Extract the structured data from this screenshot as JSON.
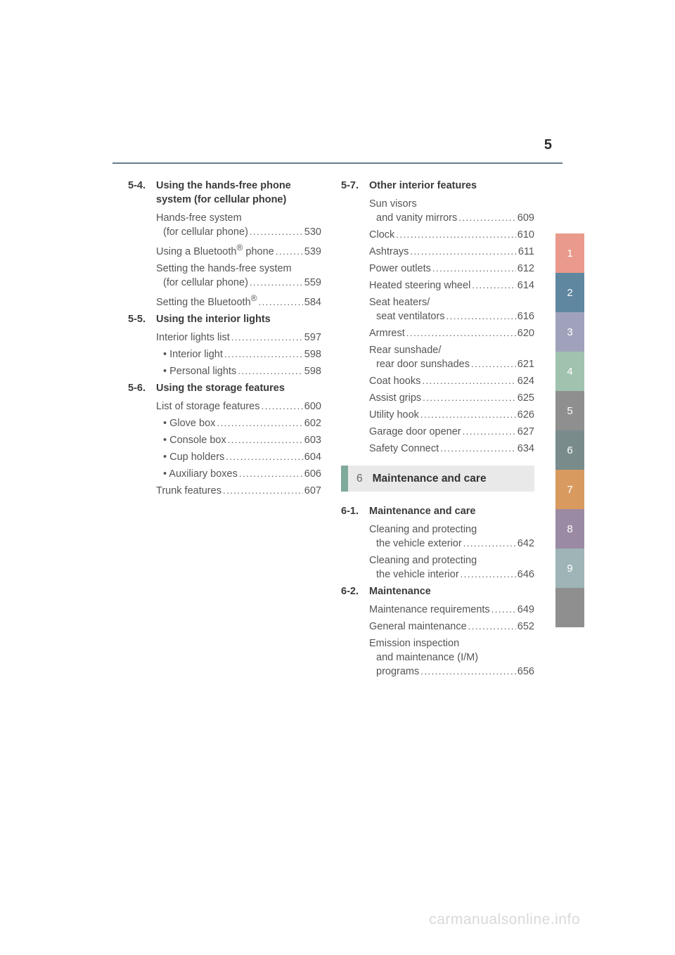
{
  "page_number": "5",
  "colors": {
    "rule": "#6a7a8a",
    "text": "#555555",
    "heading": "#3b3b3b",
    "chapter_accent": "#7fa99a",
    "chapter_bg": "#e9e9e9",
    "watermark": "#d9d9d9"
  },
  "left_col": [
    {
      "num": "5-4.",
      "title": "Using the hands-free phone system (for cellular phone)",
      "items": [
        {
          "lines": [
            "Hands-free system",
            "(for cellular phone)"
          ],
          "page": "530"
        },
        {
          "lines": [
            "Using a Bluetooth<sup>®</sup> phone"
          ],
          "page": "539"
        },
        {
          "lines": [
            "Setting the hands-free system",
            "(for cellular phone)"
          ],
          "page": "559"
        },
        {
          "lines": [
            "Setting the Bluetooth<sup>®</sup>"
          ],
          "page": "584"
        }
      ]
    },
    {
      "num": "5-5.",
      "title": "Using the interior lights",
      "items": [
        {
          "lines": [
            "Interior lights list"
          ],
          "page": "597"
        },
        {
          "lines": [
            "• Interior light"
          ],
          "page": "598",
          "sub": true
        },
        {
          "lines": [
            "• Personal lights"
          ],
          "page": "598",
          "sub": true
        }
      ]
    },
    {
      "num": "5-6.",
      "title": "Using the storage features",
      "items": [
        {
          "lines": [
            "List of storage features"
          ],
          "page": "600"
        },
        {
          "lines": [
            "• Glove box"
          ],
          "page": "602",
          "sub": true
        },
        {
          "lines": [
            "• Console box"
          ],
          "page": "603",
          "sub": true
        },
        {
          "lines": [
            "• Cup holders"
          ],
          "page": "604",
          "sub": true
        },
        {
          "lines": [
            "• Auxiliary boxes"
          ],
          "page": "606",
          "sub": true
        },
        {
          "lines": [
            "Trunk features"
          ],
          "page": "607"
        }
      ]
    }
  ],
  "right_col_top": [
    {
      "num": "5-7.",
      "title": "Other interior features",
      "items": [
        {
          "lines": [
            "Sun visors",
            "and vanity mirrors"
          ],
          "page": "609"
        },
        {
          "lines": [
            "Clock"
          ],
          "page": "610"
        },
        {
          "lines": [
            "Ashtrays"
          ],
          "page": "611"
        },
        {
          "lines": [
            "Power outlets"
          ],
          "page": "612"
        },
        {
          "lines": [
            "Heated steering wheel"
          ],
          "page": "614"
        },
        {
          "lines": [
            "Seat heaters/",
            "seat ventilators"
          ],
          "page": "616"
        },
        {
          "lines": [
            "Armrest"
          ],
          "page": "620"
        },
        {
          "lines": [
            "Rear sunshade/",
            "rear door sunshades"
          ],
          "page": "621"
        },
        {
          "lines": [
            "Coat hooks"
          ],
          "page": "624"
        },
        {
          "lines": [
            "Assist grips"
          ],
          "page": "625"
        },
        {
          "lines": [
            "Utility hook"
          ],
          "page": "626"
        },
        {
          "lines": [
            "Garage door opener"
          ],
          "page": "627"
        },
        {
          "lines": [
            "Safety Connect"
          ],
          "page": "634"
        }
      ]
    }
  ],
  "chapter_divider": {
    "num": "6",
    "title": "Maintenance and care"
  },
  "right_col_bottom": [
    {
      "num": "6-1.",
      "title": "Maintenance and care",
      "items": [
        {
          "lines": [
            "Cleaning and protecting",
            "the vehicle exterior"
          ],
          "page": "642"
        },
        {
          "lines": [
            "Cleaning and protecting",
            "the vehicle interior"
          ],
          "page": "646"
        }
      ]
    },
    {
      "num": "6-2.",
      "title": "Maintenance",
      "items": [
        {
          "lines": [
            "Maintenance requirements"
          ],
          "page": "649"
        },
        {
          "lines": [
            "General maintenance"
          ],
          "page": "652"
        },
        {
          "lines": [
            "Emission inspection",
            "and maintenance (I/M)",
            "programs"
          ],
          "page": "656"
        }
      ]
    }
  ],
  "tabs": [
    {
      "label": "1",
      "color": "#e99a8c"
    },
    {
      "label": "2",
      "color": "#5f87a0"
    },
    {
      "label": "3",
      "color": "#a0a2bc"
    },
    {
      "label": "4",
      "color": "#a1c2af"
    },
    {
      "label": "5",
      "color": "#8f8f8f"
    },
    {
      "label": "6",
      "color": "#7a8b8c"
    },
    {
      "label": "7",
      "color": "#d89a5f"
    },
    {
      "label": "8",
      "color": "#9b8aa3"
    },
    {
      "label": "9",
      "color": "#9eb4b7"
    },
    {
      "label": "",
      "color": "#8f8f8f"
    }
  ],
  "watermark": "carmanualsonline.info"
}
